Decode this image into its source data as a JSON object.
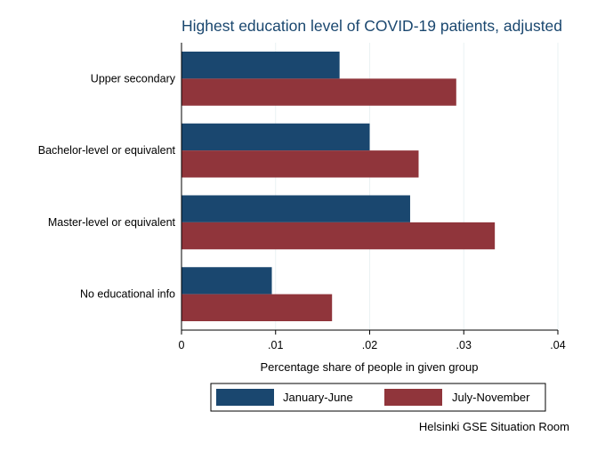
{
  "chart_data": {
    "type": "bar",
    "orientation": "horizontal",
    "title": "Highest education level of COVID-19 patients, adjusted",
    "xlabel": "Percentage share of people in given group",
    "ylabel": "",
    "xlim": [
      0,
      0.04
    ],
    "xticks": [
      {
        "value": 0,
        "label": "0"
      },
      {
        "value": 0.01,
        "label": ".01"
      },
      {
        "value": 0.02,
        "label": ".02"
      },
      {
        "value": 0.03,
        "label": ".03"
      },
      {
        "value": 0.04,
        "label": ".04"
      }
    ],
    "grid": true,
    "categories": [
      "Upper secondary",
      "Bachelor-level or equivalent",
      "Master-level or equivalent",
      "No educational info"
    ],
    "series": [
      {
        "name": "January-June",
        "color": "#1a476f",
        "values": [
          0.0168,
          0.02,
          0.0243,
          0.0096
        ]
      },
      {
        "name": "July-November",
        "color": "#90353b",
        "values": [
          0.0292,
          0.0252,
          0.0333,
          0.016
        ]
      }
    ],
    "legend_position": "bottom"
  },
  "source_note": "Helsinki GSE Situation Room"
}
